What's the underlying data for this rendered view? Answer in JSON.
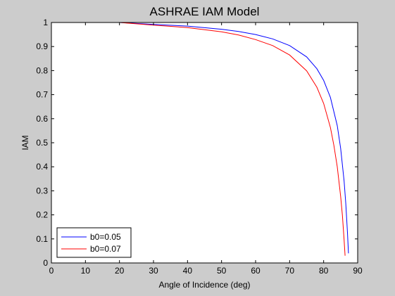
{
  "chart_data": {
    "type": "line",
    "title": "ASHRAE IAM Model",
    "xlabel": "Angle of Incidence (deg)",
    "ylabel": "IAM",
    "xlim": [
      0,
      90
    ],
    "ylim": [
      0,
      1
    ],
    "xticks": [
      0,
      10,
      20,
      30,
      40,
      50,
      60,
      70,
      80,
      90
    ],
    "yticks": [
      0,
      0.1,
      0.2,
      0.3,
      0.4,
      0.5,
      0.6,
      0.7,
      0.8,
      0.9,
      1
    ],
    "xtick_labels": [
      "0",
      "10",
      "20",
      "30",
      "40",
      "50",
      "60",
      "70",
      "80",
      "90"
    ],
    "ytick_labels": [
      "0",
      "0.1",
      "0.2",
      "0.3",
      "0.4",
      "0.5",
      "0.6",
      "0.7",
      "0.8",
      "0.9",
      "1"
    ],
    "grid": false,
    "legend_position": "bottom-left",
    "series": [
      {
        "name": "b0=0.05",
        "color": "#0000ff",
        "x": [
          0,
          10,
          20,
          30,
          40,
          50,
          55,
          60,
          65,
          70,
          75,
          78,
          80,
          82,
          84,
          85,
          86,
          86.5,
          87,
          87.3
        ],
        "y": [
          1,
          1,
          1,
          0.992,
          0.985,
          0.972,
          0.963,
          0.95,
          0.932,
          0.904,
          0.857,
          0.808,
          0.759,
          0.688,
          0.571,
          0.477,
          0.341,
          0.247,
          0.126,
          0.04
        ]
      },
      {
        "name": "b0=0.07",
        "color": "#ff0000",
        "x": [
          0,
          10,
          20,
          30,
          40,
          50,
          55,
          60,
          65,
          70,
          75,
          78,
          80,
          82,
          83,
          84,
          85,
          85.5,
          86,
          86.3
        ],
        "y": [
          1,
          1,
          1,
          0.989,
          0.979,
          0.961,
          0.948,
          0.929,
          0.904,
          0.865,
          0.799,
          0.731,
          0.663,
          0.563,
          0.489,
          0.4,
          0.277,
          0.198,
          0.096,
          0.03
        ]
      }
    ]
  }
}
